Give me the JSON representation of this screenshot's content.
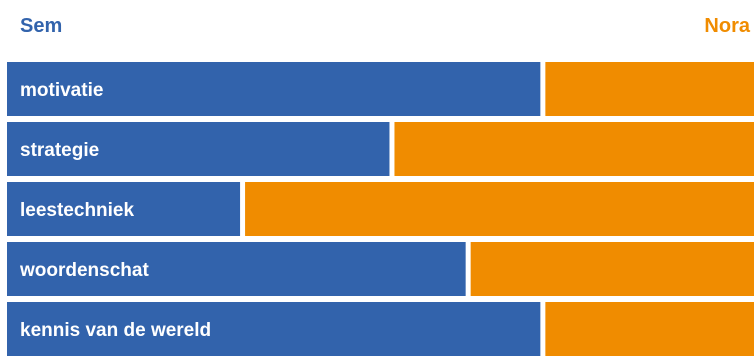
{
  "colors": {
    "left": "#3263ac",
    "right": "#f08c00"
  },
  "chart_data": {
    "type": "bar",
    "stacked": true,
    "orientation": "horizontal",
    "categories": [
      "motivatie",
      "strategie",
      "leestechniek",
      "woordenschat",
      "kennis van de wereld"
    ],
    "series": [
      {
        "name": "Sem",
        "values": [
          71.4,
          51.2,
          31.2,
          61.4,
          71.4
        ]
      },
      {
        "name": "Nora",
        "values": [
          28.6,
          48.8,
          68.8,
          38.6,
          28.6
        ]
      }
    ],
    "xlim": [
      0,
      100
    ],
    "grid": false,
    "legend": "top"
  }
}
